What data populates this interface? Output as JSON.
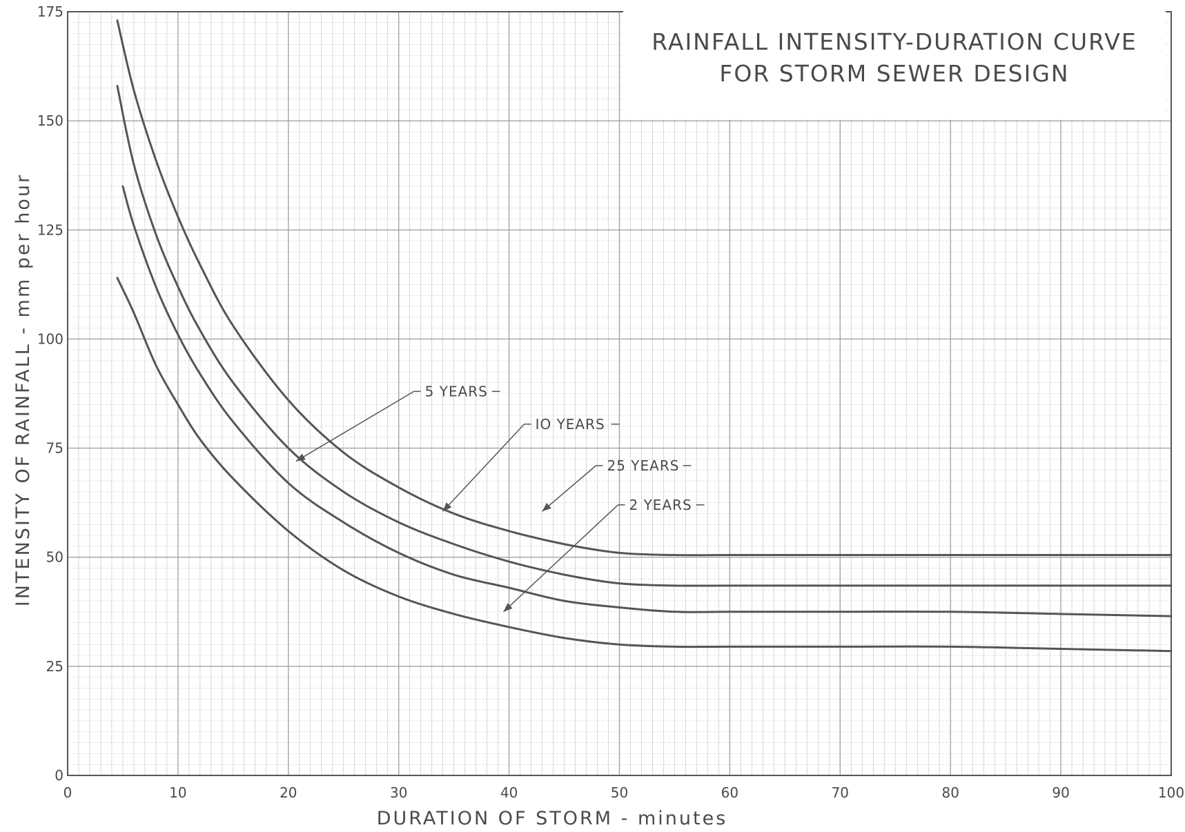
{
  "chart_data": {
    "type": "line",
    "title": "RAINFALL  INTENSITY-DURATION CURVE",
    "subtitle": "FOR STORM  SEWER  DESIGN",
    "xlabel": "DURATION   OF  STORM - minutes",
    "ylabel": "INTENSITY  OF  RAINFALL -   mm  per hour",
    "xlim": [
      0,
      100
    ],
    "ylim": [
      0,
      175
    ],
    "x_ticks": [
      "0",
      "10",
      "20",
      "30",
      "40",
      "50",
      "60",
      "70",
      "80",
      "90",
      "100"
    ],
    "y_ticks": [
      "0",
      "25",
      "50",
      "75",
      "100",
      "125",
      "150",
      "175"
    ],
    "grid": true,
    "legend": "leader-line labels on curves",
    "colors": {
      "curve": "#555555",
      "grid": "#9a9a9a",
      "background": "#ffffff",
      "text": "#4a4a4a"
    },
    "series": [
      {
        "name": "25 YEARS",
        "x": [
          4.5,
          6,
          8,
          10,
          12,
          15,
          20,
          25,
          30,
          35,
          40,
          45,
          50,
          55,
          60,
          70,
          80,
          90,
          100
        ],
        "y": [
          173,
          157,
          141,
          128,
          117,
          103,
          86,
          74,
          66,
          60,
          56,
          53,
          51,
          50.5,
          50.5,
          50.5,
          50.5,
          50.5,
          50.5
        ]
      },
      {
        "name": "10 YEARS",
        "x": [
          4.5,
          6,
          8,
          10,
          12,
          15,
          20,
          25,
          30,
          35,
          40,
          45,
          50,
          55,
          60,
          70,
          80,
          90,
          100
        ],
        "y": [
          158,
          140,
          124,
          112,
          102,
          90,
          75,
          65,
          58,
          53,
          49,
          46,
          44,
          43.5,
          43.5,
          43.5,
          43.5,
          43.5,
          43.5
        ]
      },
      {
        "name": "5 YEARS",
        "x": [
          5,
          6,
          8,
          10,
          12,
          15,
          20,
          25,
          30,
          35,
          40,
          45,
          50,
          55,
          60,
          70,
          80,
          90,
          100
        ],
        "y": [
          135,
          126,
          112,
          101,
          92,
          81,
          67,
          58,
          51,
          46,
          43,
          40,
          38.5,
          37.5,
          37.5,
          37.5,
          37.5,
          37,
          36.5
        ]
      },
      {
        "name": "2 YEARS",
        "x": [
          4.5,
          6,
          8,
          10,
          12,
          15,
          20,
          25,
          30,
          35,
          40,
          45,
          50,
          55,
          60,
          70,
          80,
          90,
          100
        ],
        "y": [
          114,
          106,
          94,
          85,
          77,
          68,
          56,
          47,
          41,
          37,
          34,
          31.5,
          30,
          29.5,
          29.5,
          29.5,
          29.5,
          29,
          28.5
        ]
      }
    ],
    "annotations": [
      {
        "text": "5 YEARS",
        "series": "5 YEARS",
        "label_x": 32,
        "label_y": 88,
        "arrow_x": 20.7,
        "arrow_y": 72
      },
      {
        "text": "IO YEARS",
        "series": "10 YEARS",
        "label_x": 42,
        "label_y": 80.5,
        "arrow_x": 34,
        "arrow_y": 60.5
      },
      {
        "text": "25 YEARS",
        "series": "25 YEARS",
        "label_x": 48.5,
        "label_y": 71,
        "arrow_x": 43,
        "arrow_y": 60.5
      },
      {
        "text": "2 YEARS",
        "series": "2 YEARS",
        "label_x": 50.5,
        "label_y": 62,
        "arrow_x": 39.5,
        "arrow_y": 37.5
      }
    ]
  }
}
